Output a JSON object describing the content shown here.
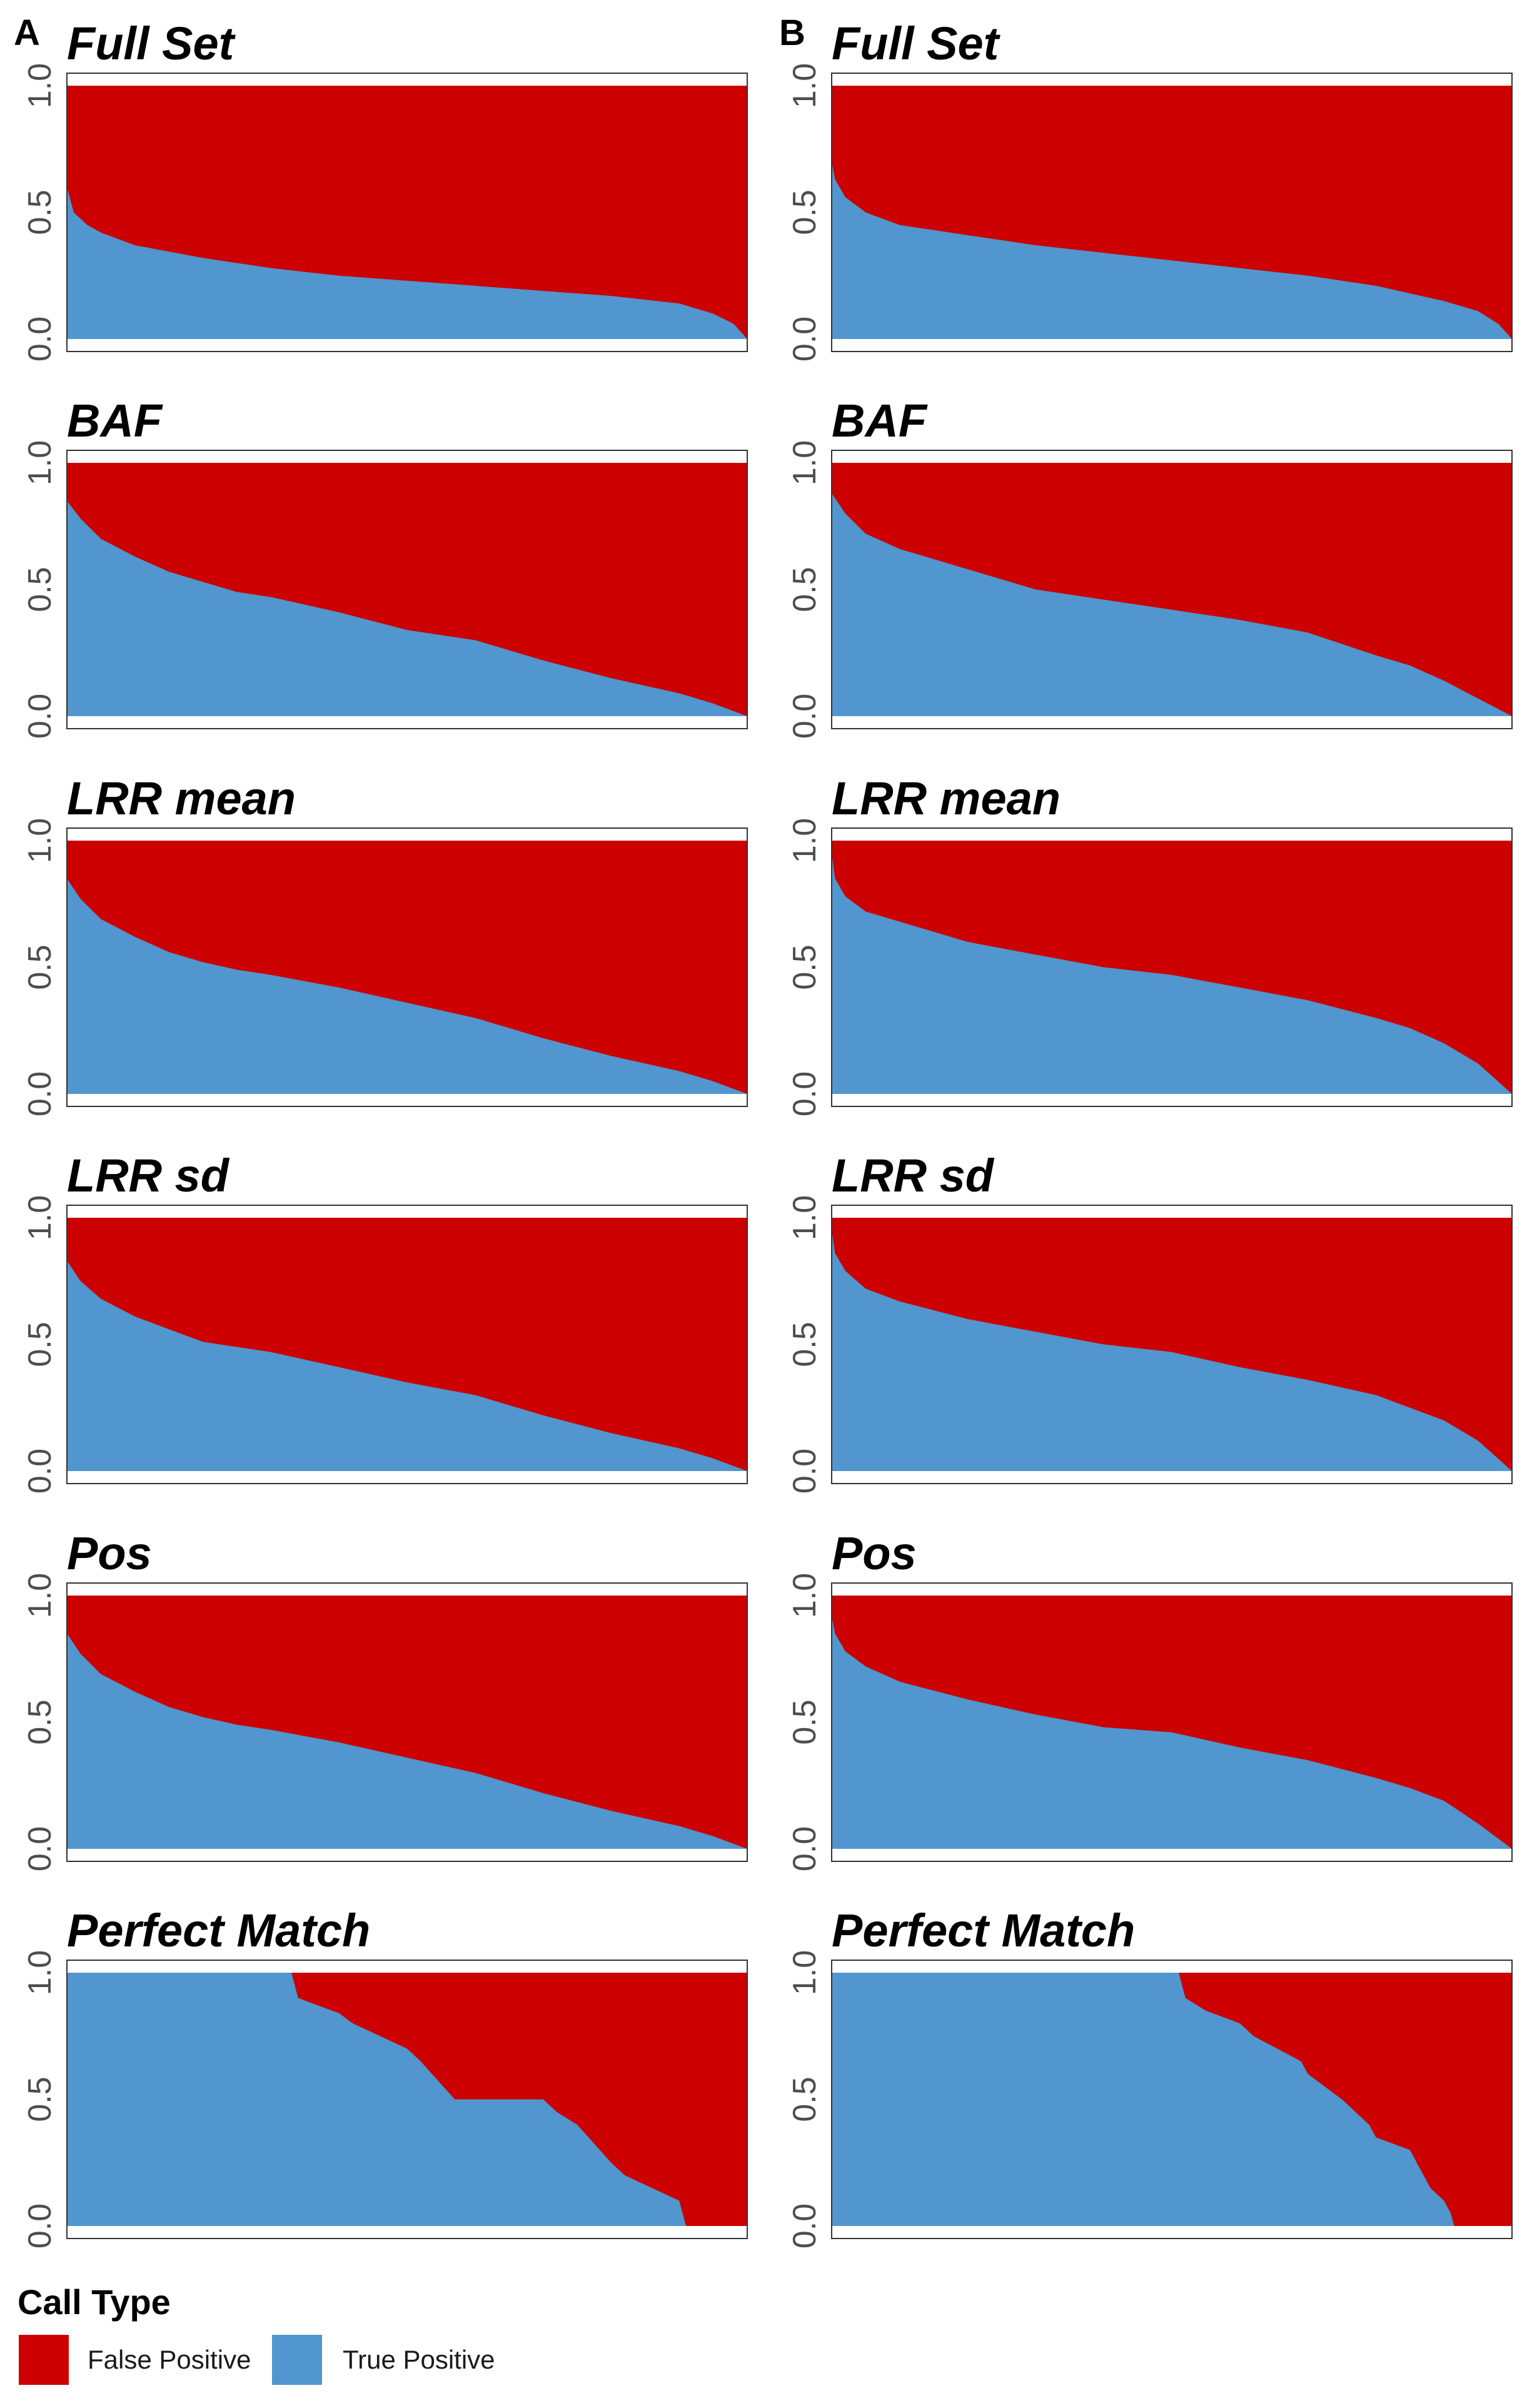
{
  "figure": {
    "panel_letters": [
      "A",
      "B"
    ],
    "colors": {
      "false_positive": "#CC0000",
      "true_positive": "#5196CE"
    },
    "y_ticks": [
      "0.0",
      "0.5",
      "1.0"
    ],
    "legend": {
      "title": "Call Type",
      "items": [
        {
          "label": "False Positive",
          "color": "#CC0000"
        },
        {
          "label": "True Positive",
          "color": "#5196CE"
        }
      ]
    }
  },
  "chart_data": [
    {
      "type": "area",
      "column": "A",
      "title": "Full Set",
      "ylim": [
        0,
        1
      ],
      "grid": false,
      "series": [
        {
          "name": "True Positive",
          "x": [
            0,
            0.01,
            0.03,
            0.05,
            0.1,
            0.2,
            0.3,
            0.4,
            0.5,
            0.6,
            0.7,
            0.8,
            0.9,
            0.95,
            0.98,
            1.0
          ],
          "values": [
            0.6,
            0.5,
            0.45,
            0.42,
            0.37,
            0.32,
            0.28,
            0.25,
            0.23,
            0.21,
            0.19,
            0.17,
            0.14,
            0.1,
            0.06,
            0.0
          ]
        },
        {
          "name": "False Positive",
          "stacked_to": 1.0
        }
      ]
    },
    {
      "type": "area",
      "column": "B",
      "title": "Full Set",
      "ylim": [
        0,
        1
      ],
      "grid": false,
      "series": [
        {
          "name": "True Positive",
          "x": [
            0,
            0.005,
            0.02,
            0.05,
            0.1,
            0.2,
            0.3,
            0.4,
            0.5,
            0.6,
            0.7,
            0.8,
            0.9,
            0.95,
            0.98,
            1.0
          ],
          "values": [
            0.7,
            0.63,
            0.56,
            0.5,
            0.45,
            0.41,
            0.37,
            0.34,
            0.31,
            0.28,
            0.25,
            0.21,
            0.15,
            0.11,
            0.06,
            0.0
          ]
        },
        {
          "name": "False Positive",
          "stacked_to": 1.0
        }
      ]
    },
    {
      "type": "area",
      "column": "A",
      "title": "BAF",
      "ylim": [
        0,
        1
      ],
      "grid": false,
      "series": [
        {
          "name": "True Positive",
          "x": [
            0,
            0.02,
            0.05,
            0.1,
            0.15,
            0.2,
            0.25,
            0.3,
            0.4,
            0.5,
            0.6,
            0.7,
            0.8,
            0.9,
            0.95,
            1.0
          ],
          "values": [
            0.85,
            0.78,
            0.7,
            0.63,
            0.57,
            0.53,
            0.49,
            0.47,
            0.41,
            0.34,
            0.3,
            0.22,
            0.15,
            0.09,
            0.05,
            0.0
          ]
        },
        {
          "name": "False Positive",
          "stacked_to": 1.0
        }
      ]
    },
    {
      "type": "area",
      "column": "B",
      "title": "BAF",
      "ylim": [
        0,
        1
      ],
      "grid": false,
      "series": [
        {
          "name": "True Positive",
          "x": [
            0,
            0.02,
            0.05,
            0.1,
            0.15,
            0.2,
            0.3,
            0.4,
            0.5,
            0.6,
            0.7,
            0.8,
            0.85,
            0.9,
            0.95,
            1.0
          ],
          "values": [
            0.88,
            0.8,
            0.72,
            0.66,
            0.62,
            0.58,
            0.5,
            0.46,
            0.42,
            0.38,
            0.33,
            0.24,
            0.2,
            0.14,
            0.07,
            0.0
          ]
        },
        {
          "name": "False Positive",
          "stacked_to": 1.0
        }
      ]
    },
    {
      "type": "area",
      "column": "A",
      "title": "LRR mean",
      "ylim": [
        0,
        1
      ],
      "grid": false,
      "series": [
        {
          "name": "True Positive",
          "x": [
            0,
            0.02,
            0.05,
            0.1,
            0.15,
            0.2,
            0.25,
            0.3,
            0.4,
            0.5,
            0.6,
            0.7,
            0.8,
            0.9,
            0.95,
            1.0
          ],
          "values": [
            0.85,
            0.77,
            0.69,
            0.62,
            0.56,
            0.52,
            0.49,
            0.47,
            0.42,
            0.36,
            0.3,
            0.22,
            0.15,
            0.09,
            0.05,
            0.0
          ]
        },
        {
          "name": "False Positive",
          "stacked_to": 1.0
        }
      ]
    },
    {
      "type": "area",
      "column": "B",
      "title": "LRR mean",
      "ylim": [
        0,
        1
      ],
      "grid": false,
      "series": [
        {
          "name": "True Positive",
          "x": [
            0,
            0.005,
            0.02,
            0.05,
            0.1,
            0.2,
            0.3,
            0.4,
            0.5,
            0.6,
            0.7,
            0.8,
            0.85,
            0.9,
            0.95,
            1.0
          ],
          "values": [
            0.95,
            0.85,
            0.78,
            0.72,
            0.68,
            0.6,
            0.55,
            0.5,
            0.47,
            0.42,
            0.37,
            0.3,
            0.26,
            0.2,
            0.12,
            0.0
          ]
        },
        {
          "name": "False Positive",
          "stacked_to": 1.0
        }
      ]
    },
    {
      "type": "area",
      "column": "A",
      "title": "LRR sd",
      "ylim": [
        0,
        1
      ],
      "grid": false,
      "series": [
        {
          "name": "True Positive",
          "x": [
            0,
            0.02,
            0.05,
            0.1,
            0.15,
            0.2,
            0.25,
            0.3,
            0.4,
            0.5,
            0.6,
            0.7,
            0.8,
            0.9,
            0.95,
            1.0
          ],
          "values": [
            0.83,
            0.75,
            0.68,
            0.61,
            0.56,
            0.51,
            0.49,
            0.47,
            0.41,
            0.35,
            0.3,
            0.22,
            0.15,
            0.09,
            0.05,
            0.0
          ]
        },
        {
          "name": "False Positive",
          "stacked_to": 1.0
        }
      ]
    },
    {
      "type": "area",
      "column": "B",
      "title": "LRR sd",
      "ylim": [
        0,
        1
      ],
      "grid": false,
      "series": [
        {
          "name": "True Positive",
          "x": [
            0,
            0.005,
            0.02,
            0.05,
            0.1,
            0.2,
            0.3,
            0.4,
            0.5,
            0.6,
            0.7,
            0.8,
            0.85,
            0.9,
            0.95,
            1.0
          ],
          "values": [
            0.95,
            0.86,
            0.79,
            0.72,
            0.67,
            0.6,
            0.55,
            0.5,
            0.47,
            0.41,
            0.36,
            0.3,
            0.25,
            0.2,
            0.12,
            0.0
          ]
        },
        {
          "name": "False Positive",
          "stacked_to": 1.0
        }
      ]
    },
    {
      "type": "area",
      "column": "A",
      "title": "Pos",
      "ylim": [
        0,
        1
      ],
      "grid": false,
      "series": [
        {
          "name": "True Positive",
          "x": [
            0,
            0.02,
            0.05,
            0.1,
            0.15,
            0.2,
            0.25,
            0.3,
            0.4,
            0.5,
            0.6,
            0.7,
            0.8,
            0.9,
            0.95,
            1.0
          ],
          "values": [
            0.85,
            0.77,
            0.69,
            0.62,
            0.56,
            0.52,
            0.49,
            0.47,
            0.42,
            0.36,
            0.3,
            0.22,
            0.15,
            0.09,
            0.05,
            0.0
          ]
        },
        {
          "name": "False Positive",
          "stacked_to": 1.0
        }
      ]
    },
    {
      "type": "area",
      "column": "B",
      "title": "Pos",
      "ylim": [
        0,
        1
      ],
      "grid": false,
      "series": [
        {
          "name": "True Positive",
          "x": [
            0,
            0.005,
            0.02,
            0.05,
            0.1,
            0.2,
            0.3,
            0.4,
            0.5,
            0.6,
            0.7,
            0.8,
            0.85,
            0.9,
            0.95,
            1.0
          ],
          "values": [
            0.92,
            0.85,
            0.78,
            0.72,
            0.66,
            0.59,
            0.53,
            0.48,
            0.46,
            0.4,
            0.35,
            0.28,
            0.24,
            0.19,
            0.1,
            0.0
          ]
        },
        {
          "name": "False Positive",
          "stacked_to": 1.0
        }
      ]
    },
    {
      "type": "area",
      "column": "A",
      "title": "Perfect Match",
      "ylim": [
        0,
        1
      ],
      "grid": false,
      "series": [
        {
          "name": "True Positive",
          "x": [
            0,
            0.33,
            0.34,
            0.37,
            0.4,
            0.42,
            0.5,
            0.52,
            0.57,
            0.7,
            0.72,
            0.75,
            0.8,
            0.82,
            0.86,
            0.9,
            0.91,
            1.0
          ],
          "values": [
            1.0,
            1.0,
            0.9,
            0.87,
            0.84,
            0.8,
            0.7,
            0.65,
            0.5,
            0.5,
            0.45,
            0.4,
            0.25,
            0.2,
            0.15,
            0.1,
            0.0,
            0.0
          ]
        },
        {
          "name": "False Positive",
          "stacked_to": 1.0
        }
      ]
    },
    {
      "type": "area",
      "column": "B",
      "title": "Perfect Match",
      "ylim": [
        0,
        1
      ],
      "grid": false,
      "series": [
        {
          "name": "True Positive",
          "x": [
            0,
            0.51,
            0.52,
            0.55,
            0.6,
            0.62,
            0.69,
            0.7,
            0.75,
            0.79,
            0.8,
            0.85,
            0.87,
            0.88,
            0.9,
            0.91,
            0.915,
            1.0
          ],
          "values": [
            1.0,
            1.0,
            0.9,
            0.85,
            0.8,
            0.75,
            0.65,
            0.6,
            0.5,
            0.4,
            0.35,
            0.3,
            0.2,
            0.15,
            0.1,
            0.05,
            0.0,
            0.0
          ]
        },
        {
          "name": "False Positive",
          "stacked_to": 1.0
        }
      ]
    }
  ]
}
